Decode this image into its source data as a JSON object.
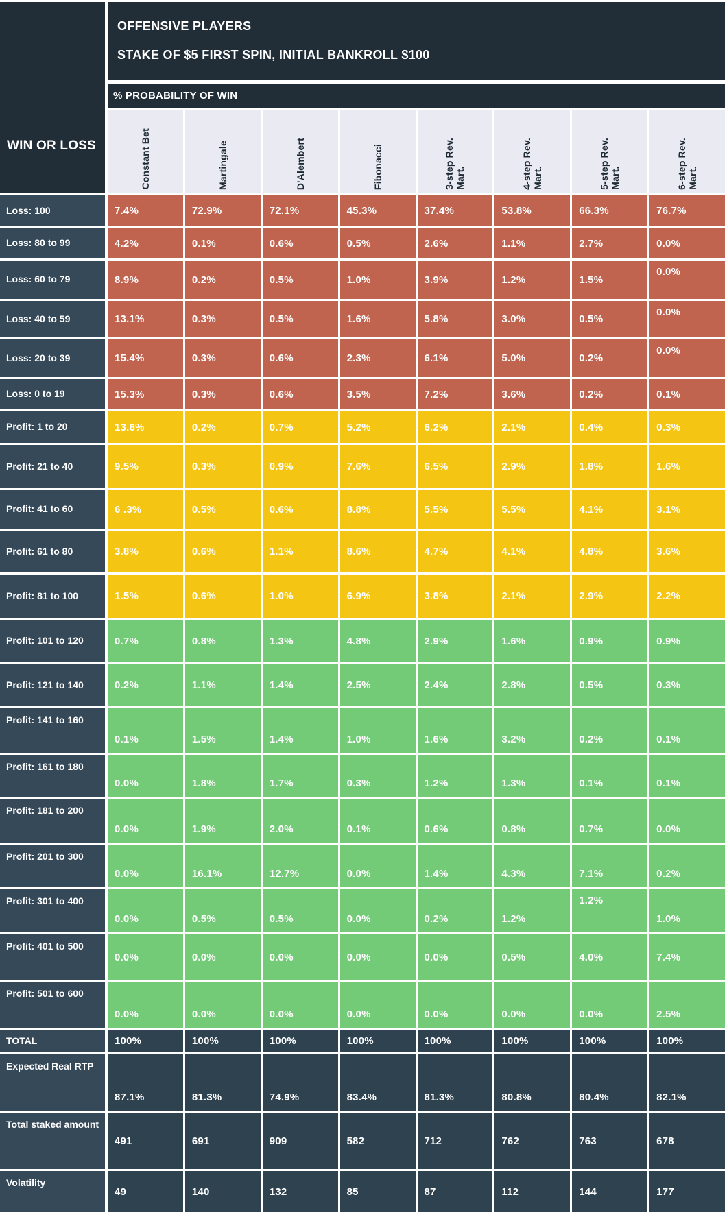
{
  "colors": {
    "dark_slate": "#212E38",
    "row_label_slate": "#364959",
    "summary_cell_slate": "#2E4250",
    "loss_red": "#C06450",
    "profit_yellow": "#F5C513",
    "profit_green": "#73CA77",
    "header_lavender": "#E9EAF2",
    "grid_white": "#FFFFFF",
    "text_white": "#FFFFFF"
  },
  "chart_data": {
    "type": "table",
    "title": "OFFENSIVE PLAYERS",
    "subtitle": "STAKE OF $5 FIRST SPIN, INITIAL BANKROLL $100",
    "measure_label": "% PROBABILITY OF WIN",
    "row_axis_label": "WIN OR LOSS",
    "columns": [
      "Constant Bet",
      "Martingale",
      "D'Alembert",
      "Fibonacci",
      "3-step Rev.\nMart.",
      "4-step Rev.\nMart.",
      "5-step Rev.\nMart.",
      "6-step Rev.\nMart."
    ],
    "rows": [
      {
        "label": "Loss: 100",
        "section": "loss",
        "values": [
          "7.4%",
          "72.9%",
          "72.1%",
          "45.3%",
          "37.4%",
          "53.8%",
          "66.3%",
          "76.7%"
        ]
      },
      {
        "label": "Loss: 80 to 99",
        "section": "loss",
        "values": [
          "4.2%",
          "0.1%",
          "0.6%",
          "0.5%",
          "2.6%",
          "1.1%",
          "2.7%",
          "0.0%"
        ]
      },
      {
        "label": "Loss: 60 to 79",
        "section": "loss",
        "values": [
          "8.9%",
          "0.2%",
          "0.5%",
          "1.0%",
          "3.9%",
          "1.2%",
          "1.5%",
          "0.0%"
        ]
      },
      {
        "label": "Loss: 40 to 59",
        "section": "loss",
        "values": [
          "13.1%",
          "0.3%",
          "0.5%",
          "1.6%",
          "5.8%",
          "3.0%",
          "0.5%",
          "0.0%"
        ]
      },
      {
        "label": "Loss: 20 to 39",
        "section": "loss",
        "values": [
          "15.4%",
          "0.3%",
          "0.6%",
          "2.3%",
          "6.1%",
          "5.0%",
          "0.2%",
          "0.0%"
        ]
      },
      {
        "label": "Loss: 0 to 19",
        "section": "loss",
        "values": [
          "15.3%",
          "0.3%",
          "0.6%",
          "3.5%",
          "7.2%",
          "3.6%",
          "0.2%",
          "0.1%"
        ]
      },
      {
        "label": "Profit: 1 to 20",
        "section": "profit-low",
        "values": [
          "13.6%",
          "0.2%",
          "0.7%",
          "5.2%",
          "6.2%",
          "2.1%",
          "0.4%",
          "0.3%"
        ]
      },
      {
        "label": "Profit: 21 to 40",
        "section": "profit-low",
        "values": [
          "9.5%",
          "0.3%",
          "0.9%",
          "7.6%",
          "6.5%",
          "2.9%",
          "1.8%",
          "1.6%"
        ]
      },
      {
        "label": "Profit: 41 to 60",
        "section": "profit-low",
        "values": [
          "6 .3%",
          "0.5%",
          "0.6%",
          "8.8%",
          "5.5%",
          "5.5%",
          "4.1%",
          "3.1%"
        ]
      },
      {
        "label": "Profit: 61 to 80",
        "section": "profit-low",
        "values": [
          "3.8%",
          "0.6%",
          "1.1%",
          "8.6%",
          "4.7%",
          "4.1%",
          "4.8%",
          "3.6%"
        ]
      },
      {
        "label": "Profit: 81 to 100",
        "section": "profit-low",
        "values": [
          "1.5%",
          "0.6%",
          "1.0%",
          "6.9%",
          "3.8%",
          "2.1%",
          "2.9%",
          "2.2%"
        ]
      },
      {
        "label": "Profit: 101 to 120",
        "section": "profit-high",
        "values": [
          "0.7%",
          "0.8%",
          "1.3%",
          "4.8%",
          "2.9%",
          "1.6%",
          "0.9%",
          "0.9%"
        ]
      },
      {
        "label": "Profit: 121 to 140",
        "section": "profit-high",
        "values": [
          "0.2%",
          "1.1%",
          "1.4%",
          "2.5%",
          "2.4%",
          "2.8%",
          "0.5%",
          "0.3%"
        ]
      },
      {
        "label": "Profit: 141 to 160",
        "section": "profit-high",
        "values": [
          "0.1%",
          "1.5%",
          "1.4%",
          "1.0%",
          "1.6%",
          "3.2%",
          "0.2%",
          "0.1%"
        ]
      },
      {
        "label": "Profit: 161 to 180",
        "section": "profit-high",
        "values": [
          "0.0%",
          "1.8%",
          "1.7%",
          "0.3%",
          "1.2%",
          "1.3%",
          "0.1%",
          "0.1%"
        ]
      },
      {
        "label": "Profit: 181 to 200",
        "section": "profit-high",
        "values": [
          "0.0%",
          "1.9%",
          "2.0%",
          "0.1%",
          "0.6%",
          "0.8%",
          "0.7%",
          "0.0%"
        ]
      },
      {
        "label": "Profit: 201 to 300",
        "section": "profit-high",
        "values": [
          "0.0%",
          "16.1%",
          "12.7%",
          "0.0%",
          "1.4%",
          "4.3%",
          "7.1%",
          "0.2%"
        ]
      },
      {
        "label": "Profit: 301 to 400",
        "section": "profit-high",
        "values": [
          "0.0%",
          "0.5%",
          "0.5%",
          "0.0%",
          "0.2%",
          "1.2%",
          "1.2%",
          "1.0%"
        ]
      },
      {
        "label": "Profit: 401 to 500",
        "section": "profit-high",
        "values": [
          "0.0%",
          "0.0%",
          "0.0%",
          "0.0%",
          "0.0%",
          "0.5%",
          "4.0%",
          "7.4%"
        ]
      },
      {
        "label": "Profit: 501 to 600",
        "section": "profit-high",
        "values": [
          "0.0%",
          "0.0%",
          "0.0%",
          "0.0%",
          "0.0%",
          "0.0%",
          "0.0%",
          "2.5%"
        ]
      },
      {
        "label": "TOTAL",
        "section": "summary",
        "values": [
          "100%",
          "100%",
          "100%",
          "100%",
          "100%",
          "100%",
          "100%",
          "100%"
        ]
      },
      {
        "label": "Expected Real RTP",
        "section": "summary",
        "values": [
          "87.1%",
          "81.3%",
          "74.9%",
          "83.4%",
          "81.3%",
          "80.8%",
          "80.4%",
          "82.1%"
        ]
      },
      {
        "label": "Total staked amount",
        "section": "summary",
        "values": [
          "491",
          "691",
          "909",
          "582",
          "712",
          "762",
          "763",
          "678"
        ]
      },
      {
        "label": "Volatility",
        "section": "summary",
        "values": [
          "49",
          "140",
          "132",
          "85",
          "87",
          "112",
          "144",
          "177"
        ]
      }
    ]
  }
}
